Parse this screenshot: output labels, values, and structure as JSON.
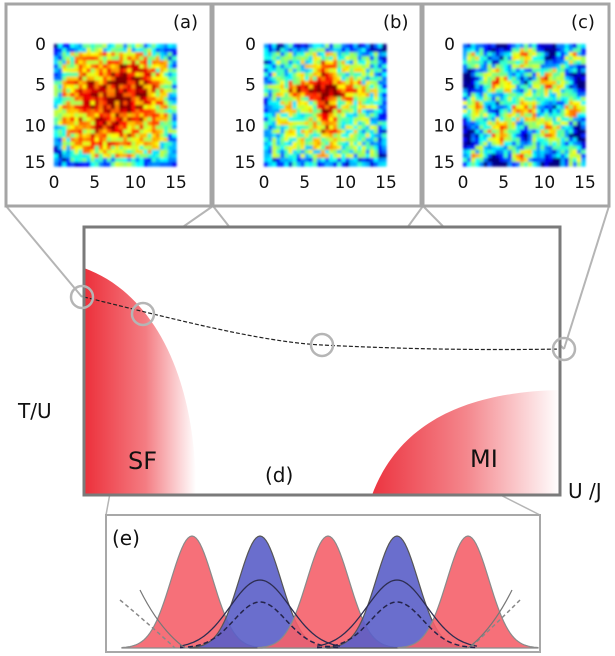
{
  "panels": [
    {
      "label": "(a)",
      "y_ticks": [
        "0",
        "5",
        "10",
        "15"
      ],
      "x_ticks": [
        "0",
        "5",
        "10",
        "15"
      ]
    },
    {
      "label": "(b)",
      "y_ticks": [
        "0",
        "5",
        "10",
        "15"
      ],
      "x_ticks": [
        "0",
        "5",
        "10",
        "15"
      ]
    },
    {
      "label": "(c)",
      "y_ticks": [
        "0",
        "5",
        "10",
        "15"
      ],
      "x_ticks": [
        "0",
        "5",
        "10",
        "15"
      ]
    }
  ],
  "phase_diagram": {
    "label": "(d)",
    "y_axis_label": "T/U",
    "x_axis_label": "U /J",
    "regions": {
      "sf": "SF",
      "mi": "MI"
    }
  },
  "profile_panel": {
    "label": "(e)"
  },
  "colors": {
    "red_region": "#f04048",
    "blue_peak": "#5a5ec8",
    "red_peak": "#f5606a",
    "frame": "#7a7a7a",
    "callout": "#b0b0b0"
  }
}
